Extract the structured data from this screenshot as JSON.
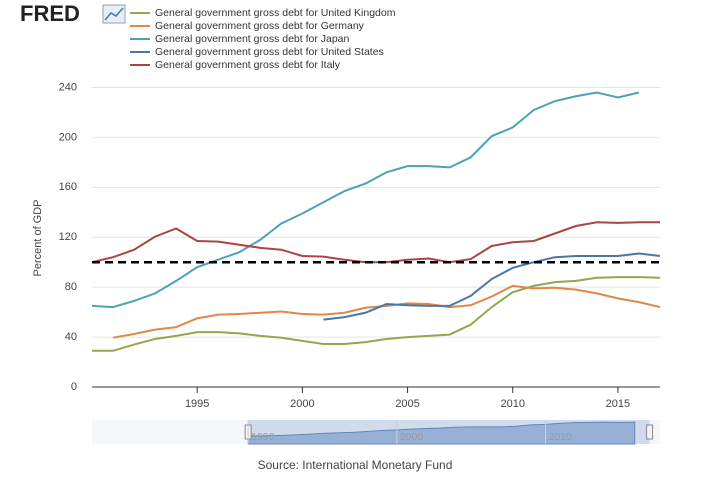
{
  "chart_data": {
    "type": "line",
    "logo": "FRED",
    "ylabel": "Percent of GDP",
    "source": "Source: International Monetary Fund",
    "x": [
      1990,
      1991,
      1992,
      1993,
      1994,
      1995,
      1996,
      1997,
      1998,
      1999,
      2000,
      2001,
      2002,
      2003,
      2004,
      2005,
      2006,
      2007,
      2008,
      2009,
      2010,
      2011,
      2012,
      2013,
      2014,
      2015,
      2016,
      2017
    ],
    "xlim": [
      1990,
      2017
    ],
    "xticks": [
      1995,
      2000,
      2005,
      2010,
      2015
    ],
    "ylim": [
      0,
      250
    ],
    "yticks": [
      0,
      40,
      80,
      120,
      160,
      200,
      240
    ],
    "grid": true,
    "reference_line": 100,
    "series": [
      {
        "name": "General government gross debt for United Kingdom",
        "color": "#91a84e",
        "values": [
          29,
          29,
          34,
          38.5,
          41,
          44,
          44,
          43,
          41,
          39.5,
          37,
          34.5,
          34.5,
          36,
          38.5,
          40,
          41,
          42,
          50,
          64,
          76,
          81,
          84,
          85,
          87.5,
          88,
          88,
          87.5
        ]
      },
      {
        "name": "General government gross debt for Germany",
        "color": "#e0874a",
        "values": [
          null,
          39.5,
          42.5,
          46,
          48,
          55,
          58,
          58.5,
          59.5,
          60.5,
          58.5,
          58,
          59.5,
          63.5,
          65,
          67,
          66.5,
          64,
          65.5,
          72.5,
          81,
          79,
          79.5,
          78,
          75,
          71,
          68,
          64
        ]
      },
      {
        "name": "General government gross debt for Japan",
        "color": "#4ba3b3",
        "values": [
          65,
          64,
          69,
          75,
          85,
          96,
          102,
          108,
          118,
          131,
          139,
          148,
          157,
          163,
          172,
          177,
          177,
          176,
          184,
          201,
          208,
          222,
          229,
          233,
          236,
          232,
          236,
          null
        ]
      },
      {
        "name": "General government gross debt for United States",
        "color": "#4a77a6",
        "values": [
          null,
          null,
          null,
          null,
          null,
          null,
          null,
          null,
          null,
          null,
          null,
          54,
          56,
          59.5,
          66.5,
          65.5,
          65,
          65,
          73,
          86.5,
          95.5,
          100,
          104,
          105,
          105,
          105,
          107,
          105
        ]
      },
      {
        "name": "General government gross debt for Italy",
        "color": "#a84545",
        "values": [
          100,
          104,
          110,
          120.5,
          127,
          117,
          116.5,
          114,
          111.5,
          110,
          105,
          104.5,
          102,
          100,
          100,
          102,
          103,
          100,
          102.5,
          113,
          116,
          117,
          123,
          129,
          132,
          131.5,
          132,
          132
        ]
      }
    ],
    "navigator": {
      "xlim": [
        1979.5,
        2017.7
      ],
      "xticks": [
        1990,
        2000,
        2010
      ],
      "selection": [
        1990,
        2017
      ]
    }
  }
}
